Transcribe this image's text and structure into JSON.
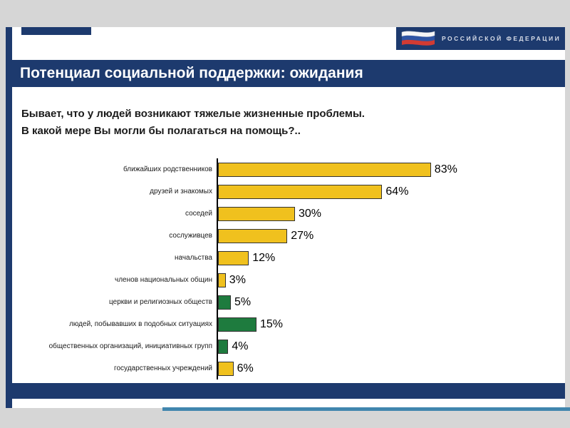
{
  "colors": {
    "navy": "#1d3a6e",
    "teal": "#4186ae",
    "yellow": "#f0c11e",
    "green": "#1e7b3e",
    "page_bg": "#d6d6d6",
    "slide_bg": "#ffffff"
  },
  "header": {
    "org_text": "РОССИЙСКОЙ ФЕДЕРАЦИИ"
  },
  "title": "Потенциал социальной поддержки: ожидания",
  "subtitle": {
    "line1": "Бывает, что у людей возникают тяжелые жизненные проблемы.",
    "line2": "В какой мере Вы могли бы полагаться на помощь?.."
  },
  "chart_data": {
    "type": "bar",
    "orientation": "horizontal",
    "title": "Потенциал социальной поддержки: ожидания",
    "question": "Бывает, что у людей возникают тяжелые жизненные проблемы. В какой мере Вы могли бы полагаться на помощь?..",
    "categories": [
      "ближайших родственников",
      "друзей и знакомых",
      "соседей",
      "сослуживцев",
      "начальства",
      "членов национальных общин",
      "церкви и религиозных обществ",
      "людей, побывавших в подобных ситуациях",
      "общественных организаций, инициативных групп",
      "государственных учреждений"
    ],
    "values": [
      83,
      64,
      30,
      27,
      12,
      3,
      5,
      15,
      4,
      6
    ],
    "value_labels": [
      "83%",
      "64%",
      "30%",
      "27%",
      "12%",
      "3%",
      "5%",
      "15%",
      "4%",
      "6%"
    ],
    "bar_colors": [
      "yellow",
      "yellow",
      "yellow",
      "yellow",
      "yellow",
      "yellow",
      "green",
      "green",
      "green",
      "yellow"
    ],
    "xlim": [
      0,
      100
    ],
    "grid": false,
    "legend": false
  }
}
